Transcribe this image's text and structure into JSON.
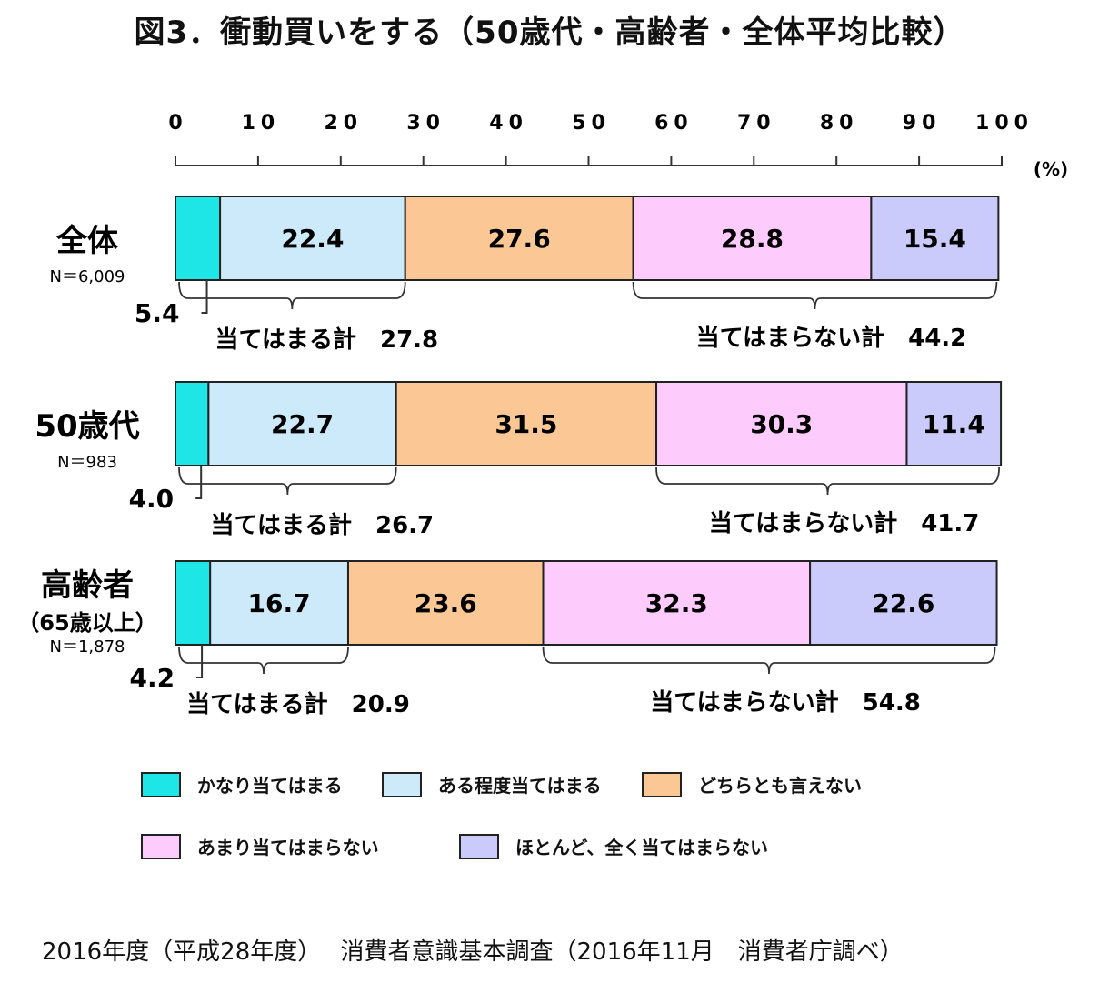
{
  "title": "図3．衝動買いをする（50歳代・高齢者・全体平均比較）",
  "axis": {
    "ticks": [
      "0",
      "10",
      "20",
      "30",
      "40",
      "50",
      "60",
      "70",
      "80",
      "90",
      "100"
    ],
    "unit": "(%)"
  },
  "colors": {
    "cat0": "#1ee6e6",
    "cat1": "#cdeafb",
    "cat2": "#fbc895",
    "cat3": "#fecbfd",
    "cat4": "#cbcbfb"
  },
  "chart_data": {
    "type": "bar",
    "stacked": true,
    "orientation": "horizontal",
    "title": "図3．衝動買いをする（50歳代・高齢者・全体平均比較）",
    "xlim": [
      0,
      100
    ],
    "xlabel": "(%)",
    "categories": [
      "全体",
      "50歳代",
      "高齢者（65歳以上）"
    ],
    "series": [
      {
        "name": "かなり当てはまる",
        "values": [
          5.4,
          4.0,
          4.2
        ]
      },
      {
        "name": "ある程度当てはまる",
        "values": [
          22.4,
          22.7,
          16.7
        ]
      },
      {
        "name": "どちらとも言えない",
        "values": [
          27.6,
          31.5,
          23.6
        ]
      },
      {
        "name": "あまり当てはまらない",
        "values": [
          28.8,
          30.3,
          32.3
        ]
      },
      {
        "name": "ほとんど、全く当てはまらない",
        "values": [
          15.4,
          11.4,
          22.6
        ]
      }
    ],
    "groups": [
      {
        "label": "全体",
        "sublabel": "",
        "n": "N＝6,009",
        "first_label": "5.4",
        "labels": [
          "22.4",
          "27.6",
          "28.8",
          "15.4"
        ],
        "agree_total": "当てはまる計　27.8",
        "disagree_total": "当てはまらない計　44.2"
      },
      {
        "label": "50歳代",
        "sublabel": "",
        "n": "N＝983",
        "first_label": "4.0",
        "labels": [
          "22.7",
          "31.5",
          "30.3",
          "11.4"
        ],
        "agree_total": "当てはまる計　26.7",
        "disagree_total": "当てはまらない計　41.7"
      },
      {
        "label": "高齢者",
        "sublabel": "（65歳以上）",
        "n": "N＝1,878",
        "first_label": "4.2",
        "labels": [
          "16.7",
          "23.6",
          "32.3",
          "22.6"
        ],
        "agree_total": "当てはまる計　20.9",
        "disagree_total": "当てはまらない計　54.8"
      }
    ],
    "legend": [
      "かなり当てはまる",
      "ある程度当てはまる",
      "どちらとも言えない",
      "あまり当てはまらない",
      "ほとんど、全く当てはまらない"
    ]
  },
  "source": "2016年度（平成28年度）　 消費者意識基本調査（2016年11月　消費者庁調べ）"
}
